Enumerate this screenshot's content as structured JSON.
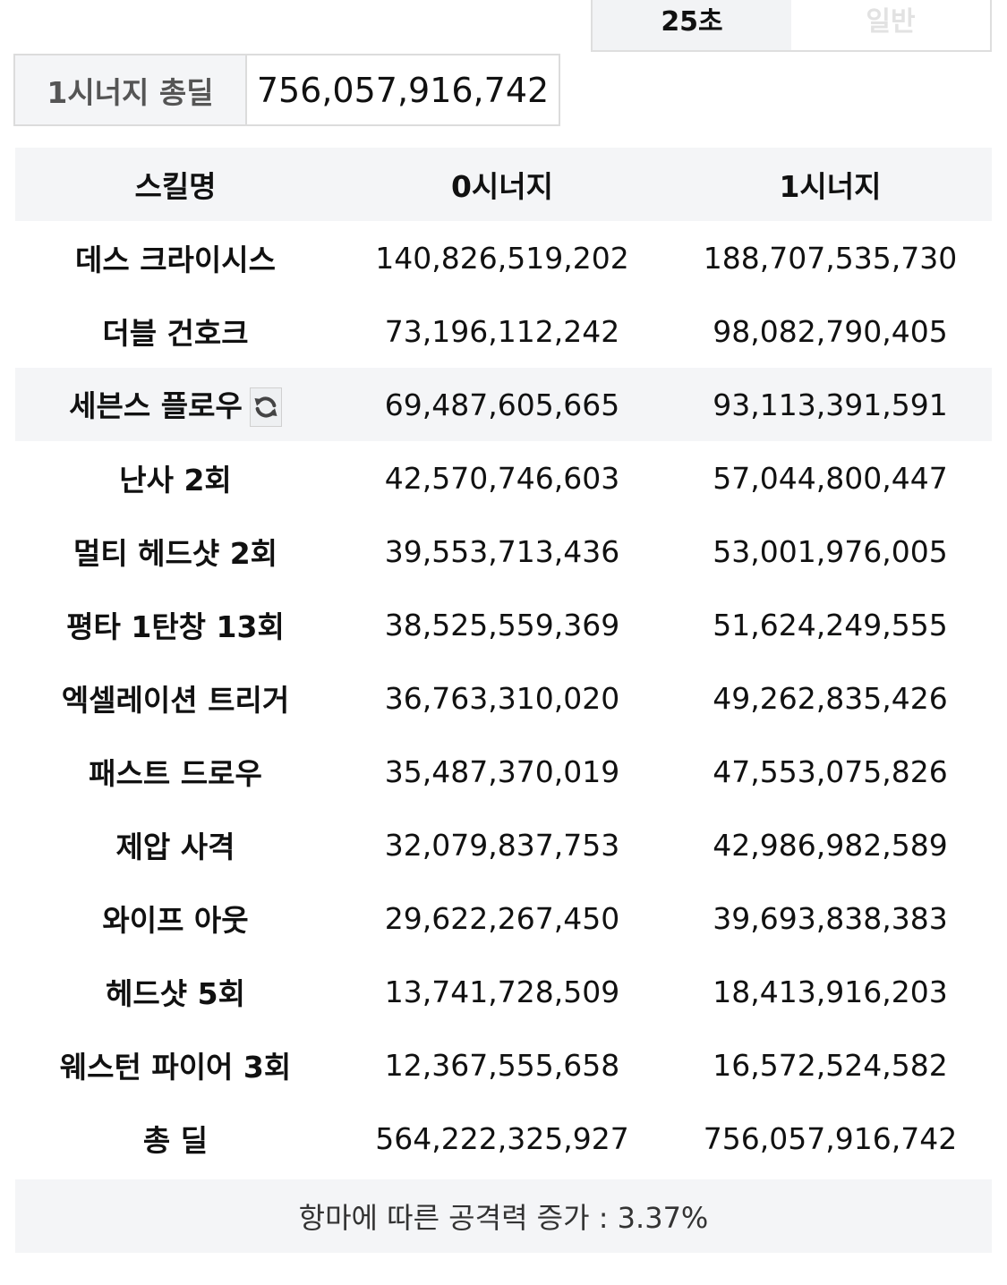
{
  "mode_tabs": {
    "active": "25초",
    "inactive": "일반"
  },
  "total_box": {
    "label": "1시너지 총딜",
    "value": "756,057,916,742"
  },
  "table": {
    "headers": [
      "스킬명",
      "0시너지",
      "1시너지"
    ],
    "rows": [
      {
        "skill": "데스 크라이시스",
        "syn0": "140,826,519,202",
        "syn1": "188,707,535,730"
      },
      {
        "skill": "더블 건호크",
        "syn0": "73,196,112,242",
        "syn1": "98,082,790,405"
      },
      {
        "skill": "세븐스 플로우",
        "syn0": "69,487,605,665",
        "syn1": "93,113,391,591"
      },
      {
        "skill": "난사 2회",
        "syn0": "42,570,746,603",
        "syn1": "57,044,800,447"
      },
      {
        "skill": "멀티 헤드샷 2회",
        "syn0": "39,553,713,436",
        "syn1": "53,001,976,005"
      },
      {
        "skill": "평타 1탄창 13회",
        "syn0": "38,525,559,369",
        "syn1": "51,624,249,555"
      },
      {
        "skill": "엑셀레이션 트리거",
        "syn0": "36,763,310,020",
        "syn1": "49,262,835,426"
      },
      {
        "skill": "패스트 드로우",
        "syn0": "35,487,370,019",
        "syn1": "47,553,075,826"
      },
      {
        "skill": "제압 사격",
        "syn0": "32,079,837,753",
        "syn1": "42,986,982,589"
      },
      {
        "skill": "와이프 아웃",
        "syn0": "29,622,267,450",
        "syn1": "39,693,838,383"
      },
      {
        "skill": "헤드샷 5회",
        "syn0": "13,741,728,509",
        "syn1": "18,413,916,203"
      },
      {
        "skill": "웨스턴 파이어 3회",
        "syn0": "12,367,555,658",
        "syn1": "16,572,524,582"
      }
    ],
    "total": {
      "skill": "총 딜",
      "syn0": "564,222,325,927",
      "syn1": "756,057,916,742"
    }
  },
  "footer_note": "항마에 따른 공격력 증가 : 3.37%",
  "colors": {
    "header_bg": "#f4f5f7",
    "swap_icon": "#444444"
  },
  "icons": {
    "swap": "refresh-icon"
  }
}
